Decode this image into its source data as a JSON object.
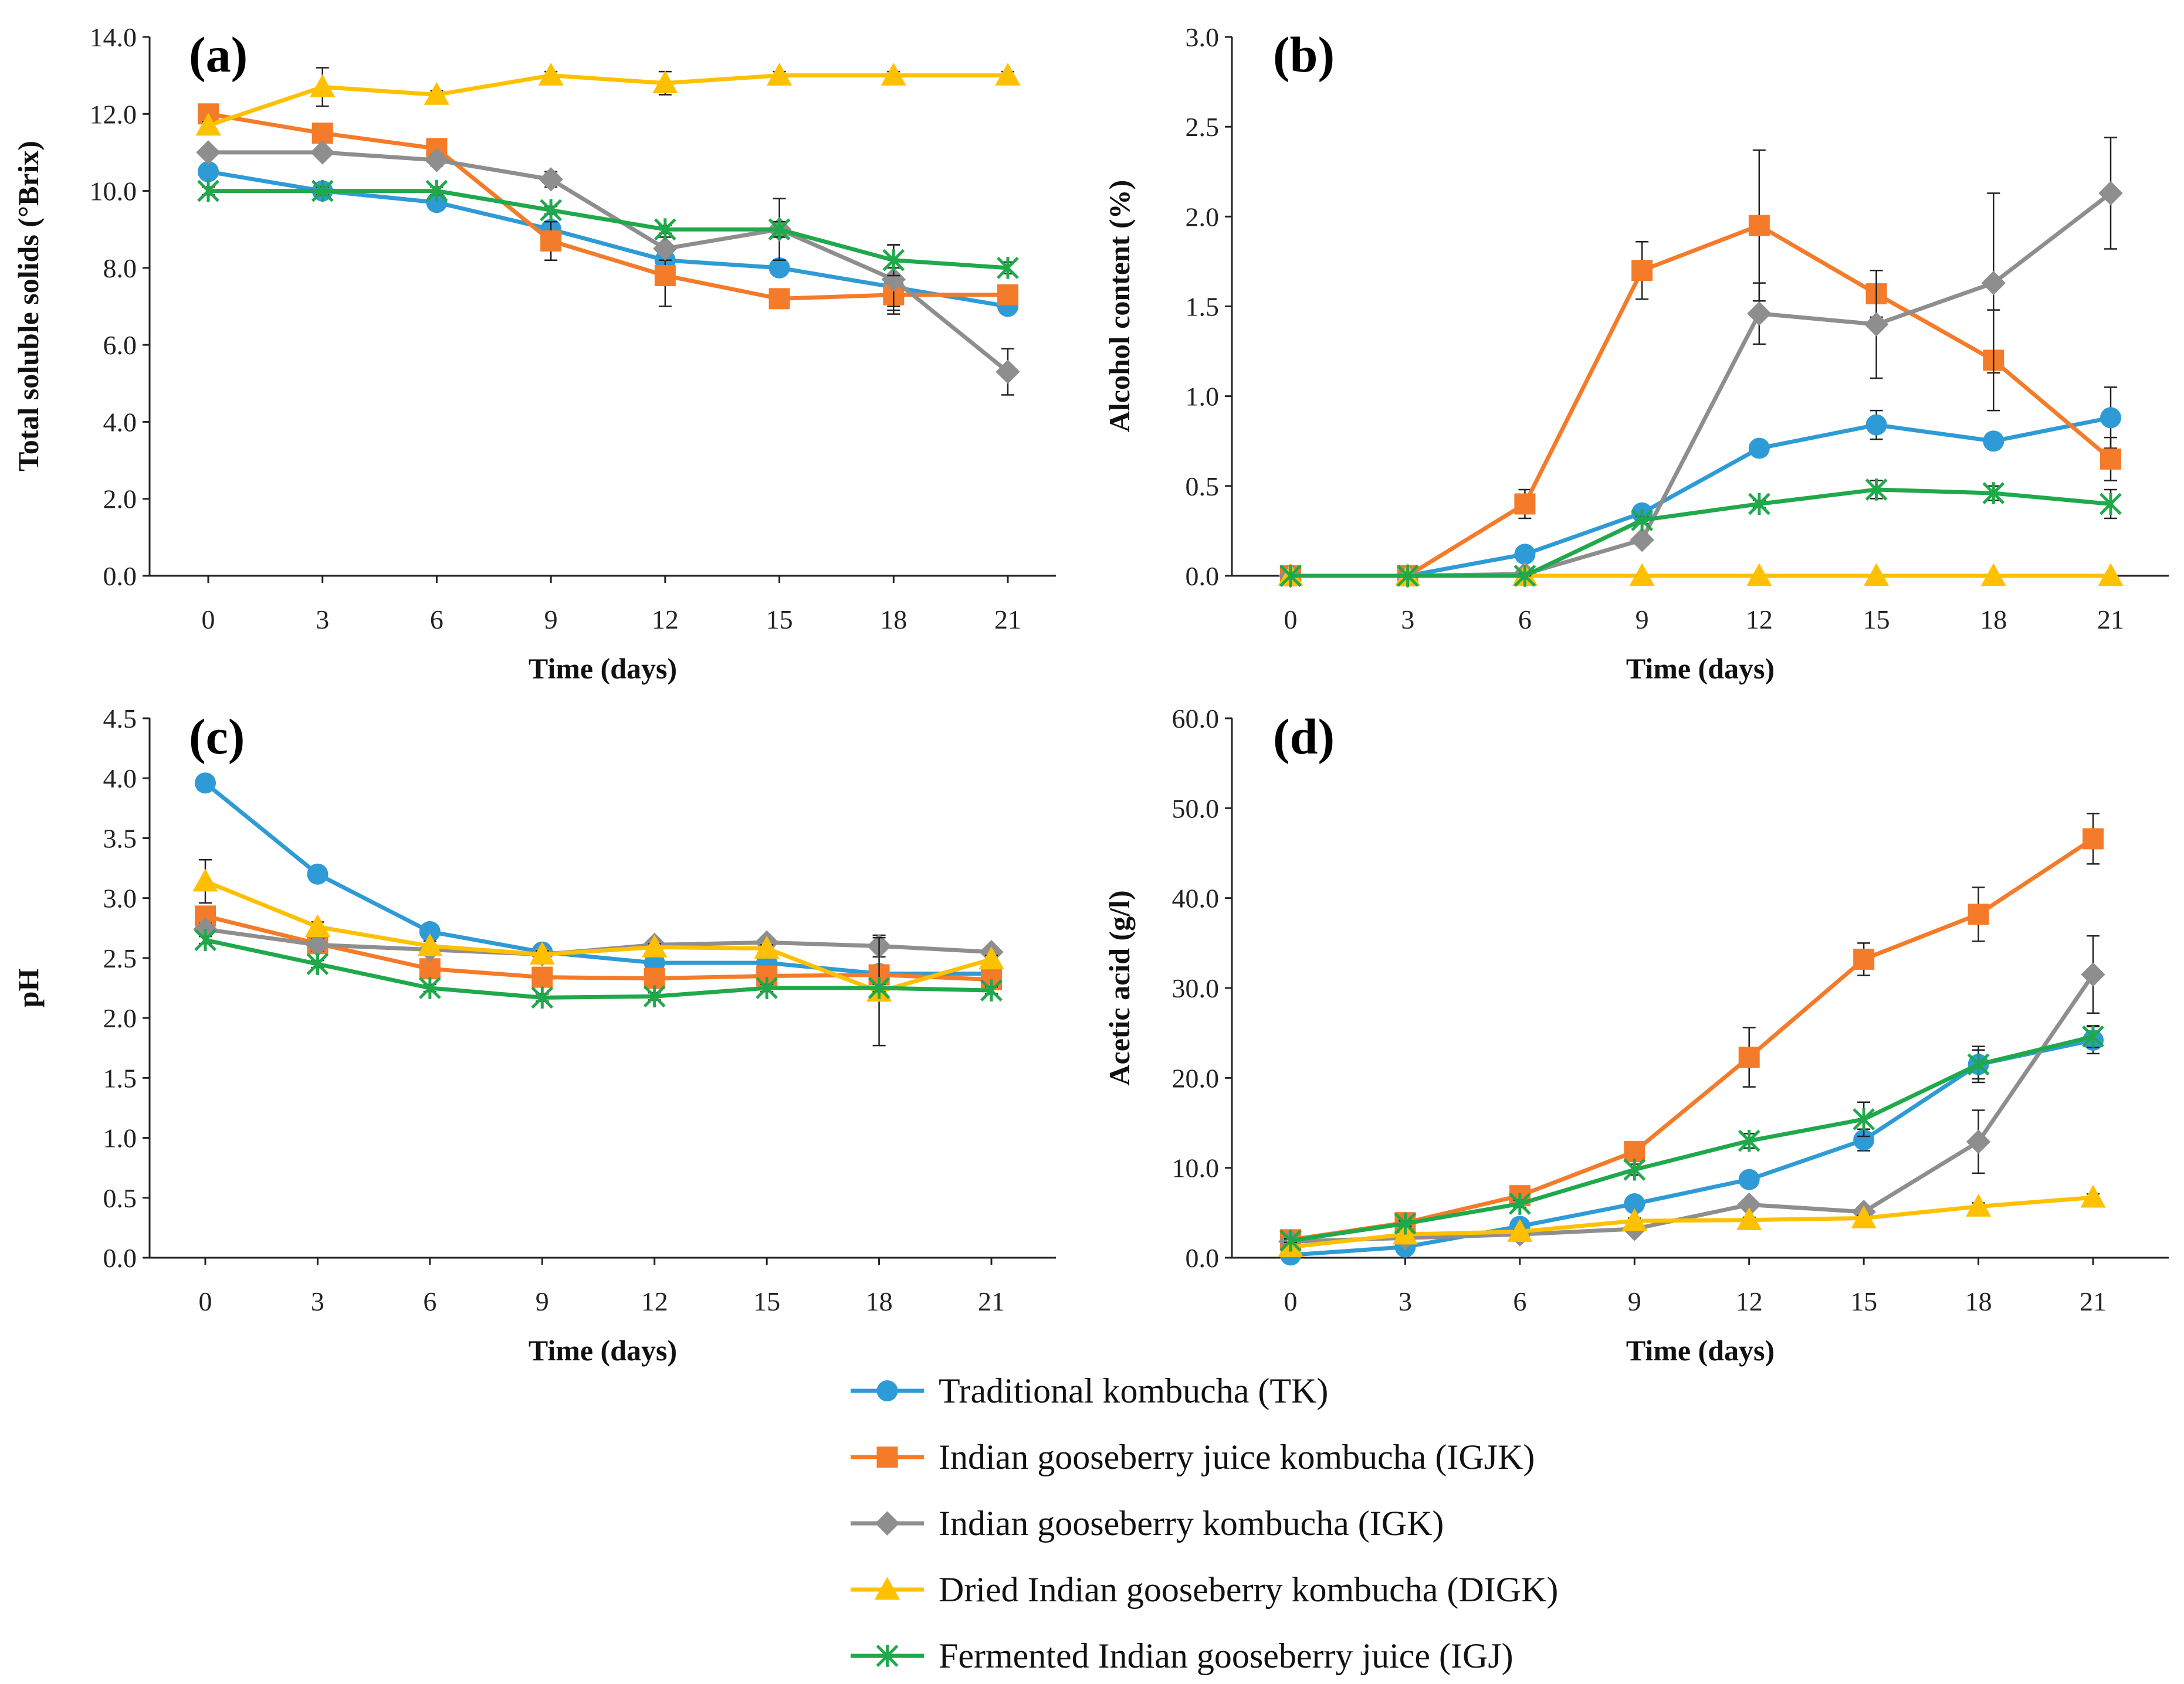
{
  "legend": [
    {
      "key": "TK",
      "label": "Traditional kombucha (TK)",
      "color": "#2E9BD6",
      "marker": "circle"
    },
    {
      "key": "IGJK",
      "label": "Indian gooseberry juice kombucha (IGJK)",
      "color": "#F47B2A",
      "marker": "square"
    },
    {
      "key": "IGK",
      "label": "Indian gooseberry kombucha (IGK)",
      "color": "#8E8E8E",
      "marker": "diamond"
    },
    {
      "key": "DIGK",
      "label": "Dried Indian gooseberry kombucha (DIGK)",
      "color": "#FFC000",
      "marker": "triangle"
    },
    {
      "key": "IGJ",
      "label": "Fermented Indian gooseberry juice  (IGJ)",
      "color": "#1FA94B",
      "marker": "star"
    }
  ],
  "chart_data": [
    {
      "id": "a",
      "panel_label": "(a)",
      "type": "line",
      "xlabel": "Time (days)",
      "ylabel": "Total soluble solids (°Brix)",
      "x": [
        0,
        3,
        6,
        9,
        12,
        15,
        18,
        21
      ],
      "ylim": [
        0,
        14
      ],
      "yticks": [
        "0.0",
        "2.0",
        "4.0",
        "6.0",
        "8.0",
        "10.0",
        "12.0",
        "14.0"
      ],
      "series": [
        {
          "key": "TK",
          "values": [
            10.5,
            10.0,
            9.7,
            9.0,
            8.2,
            8.0,
            7.5,
            7.0
          ],
          "errors": [
            0.15,
            0.1,
            0.1,
            0.2,
            0.15,
            0.15,
            0.5,
            0.2
          ]
        },
        {
          "key": "IGJK",
          "values": [
            12.0,
            11.5,
            11.1,
            8.7,
            7.8,
            7.2,
            7.3,
            7.3
          ],
          "errors": [
            0.2,
            0.15,
            0.2,
            0.5,
            0.8,
            0.15,
            0.4,
            0.2
          ]
        },
        {
          "key": "IGK",
          "values": [
            11.0,
            11.0,
            10.8,
            10.3,
            8.5,
            9.0,
            7.7,
            5.3
          ],
          "errors": [
            0.1,
            0.1,
            0.15,
            0.2,
            0.3,
            0.8,
            0.9,
            0.6
          ]
        },
        {
          "key": "DIGK",
          "values": [
            11.7,
            12.7,
            12.5,
            13.0,
            12.8,
            13.0,
            13.0,
            13.0
          ],
          "errors": [
            0.1,
            0.5,
            0.1,
            0.1,
            0.3,
            0.1,
            0.1,
            0.1
          ]
        },
        {
          "key": "IGJ",
          "values": [
            10.0,
            10.0,
            10.0,
            9.5,
            9.0,
            9.0,
            8.2,
            8.0
          ],
          "errors": [
            0.1,
            0.1,
            0.1,
            0.1,
            0.1,
            0.2,
            0.4,
            0.15
          ]
        }
      ]
    },
    {
      "id": "b",
      "panel_label": "(b)",
      "type": "line",
      "xlabel": "Time (days)",
      "ylabel": "Alcohol content (%)",
      "x": [
        0,
        3,
        6,
        9,
        12,
        15,
        18,
        21
      ],
      "ylim": [
        0,
        3
      ],
      "yticks": [
        "0.0",
        "0.5",
        "1.0",
        "1.5",
        "2.0",
        "2.5",
        "3.0"
      ],
      "series": [
        {
          "key": "TK",
          "values": [
            0,
            0,
            0.12,
            0.35,
            0.71,
            0.84,
            0.75,
            0.88
          ],
          "errors": [
            0,
            0,
            0.02,
            0.03,
            0.03,
            0.08,
            0.04,
            0.17
          ]
        },
        {
          "key": "IGJK",
          "values": [
            0,
            0,
            0.4,
            1.7,
            1.95,
            1.57,
            1.2,
            0.65
          ],
          "errors": [
            0,
            0,
            0.08,
            0.16,
            0.42,
            0.13,
            0.28,
            0.12
          ]
        },
        {
          "key": "IGK",
          "values": [
            0,
            0,
            0.01,
            0.2,
            1.46,
            1.4,
            1.63,
            2.13
          ],
          "errors": [
            0,
            0,
            0.02,
            0.03,
            0.17,
            0.3,
            0.5,
            0.31
          ]
        },
        {
          "key": "DIGK",
          "values": [
            0,
            0,
            0,
            0,
            0,
            0,
            0,
            0
          ],
          "errors": [
            0,
            0,
            0,
            0,
            0,
            0,
            0,
            0
          ]
        },
        {
          "key": "IGJ",
          "values": [
            0,
            0,
            0,
            0.31,
            0.4,
            0.48,
            0.46,
            0.4
          ],
          "errors": [
            0,
            0,
            0.01,
            0.02,
            0.02,
            0.05,
            0.04,
            0.08
          ]
        }
      ]
    },
    {
      "id": "c",
      "panel_label": "(c)",
      "type": "line",
      "xlabel": "Time (days)",
      "ylabel": "pH",
      "x": [
        0,
        3,
        6,
        9,
        12,
        15,
        18,
        21
      ],
      "ylim": [
        0,
        4.5
      ],
      "yticks": [
        "0.0",
        "0.5",
        "1.0",
        "1.5",
        "2.0",
        "2.5",
        "3.0",
        "3.5",
        "4.0",
        "4.5"
      ],
      "series": [
        {
          "key": "TK",
          "values": [
            3.96,
            3.2,
            2.72,
            2.55,
            2.46,
            2.46,
            2.37,
            2.37
          ],
          "errors": [
            0.03,
            0.03,
            0.03,
            0.03,
            0.03,
            0.03,
            0.03,
            0.03
          ]
        },
        {
          "key": "IGJK",
          "values": [
            2.85,
            2.62,
            2.41,
            2.34,
            2.33,
            2.35,
            2.36,
            2.32
          ],
          "errors": [
            0.05,
            0.05,
            0.04,
            0.03,
            0.03,
            0.03,
            0.03,
            0.03
          ]
        },
        {
          "key": "IGK",
          "values": [
            2.74,
            2.61,
            2.57,
            2.53,
            2.61,
            2.63,
            2.6,
            2.55
          ],
          "errors": [
            0.05,
            0.05,
            0.04,
            0.03,
            0.03,
            0.03,
            0.09,
            0.03
          ]
        },
        {
          "key": "DIGK",
          "values": [
            3.14,
            2.76,
            2.6,
            2.53,
            2.59,
            2.58,
            2.22,
            2.49
          ],
          "errors": [
            0.18,
            0.04,
            0.04,
            0.03,
            0.03,
            0.03,
            0.45,
            0.03
          ]
        },
        {
          "key": "IGJ",
          "values": [
            2.65,
            2.45,
            2.25,
            2.17,
            2.18,
            2.25,
            2.25,
            2.23
          ],
          "errors": [
            0.03,
            0.03,
            0.03,
            0.03,
            0.03,
            0.03,
            0.03,
            0.03
          ]
        }
      ]
    },
    {
      "id": "d",
      "panel_label": "(d)",
      "type": "line",
      "xlabel": "Time (days)",
      "ylabel": "Acetic acid (g/l)",
      "x": [
        0,
        3,
        6,
        9,
        12,
        15,
        18,
        21
      ],
      "ylim": [
        0,
        60
      ],
      "yticks": [
        "0.0",
        "10.0",
        "20.0",
        "30.0",
        "40.0",
        "50.0",
        "60.0"
      ],
      "series": [
        {
          "key": "TK",
          "values": [
            0.3,
            1.2,
            3.5,
            6.0,
            8.7,
            13.1,
            21.5,
            24.2
          ],
          "errors": [
            0.1,
            0.2,
            0.3,
            0.4,
            0.6,
            1.2,
            2.0,
            1.5
          ]
        },
        {
          "key": "IGJK",
          "values": [
            2.0,
            3.9,
            6.9,
            11.8,
            22.3,
            33.2,
            38.2,
            46.6
          ],
          "errors": [
            0.2,
            0.4,
            0.5,
            0.8,
            3.3,
            1.8,
            3.0,
            2.8
          ]
        },
        {
          "key": "IGK",
          "values": [
            1.8,
            2.2,
            2.6,
            3.2,
            5.9,
            5.1,
            12.9,
            31.5
          ],
          "errors": [
            0.2,
            0.2,
            0.3,
            0.4,
            0.5,
            0.5,
            3.5,
            4.3
          ]
        },
        {
          "key": "DIGK",
          "values": [
            1.2,
            2.6,
            2.9,
            4.1,
            4.2,
            4.4,
            5.7,
            6.7
          ],
          "errors": [
            0.1,
            0.2,
            0.2,
            0.3,
            0.3,
            0.3,
            0.4,
            0.4
          ]
        },
        {
          "key": "IGJ",
          "values": [
            1.9,
            3.8,
            6.0,
            9.8,
            13.0,
            15.4,
            21.5,
            24.6
          ],
          "errors": [
            0.2,
            0.3,
            0.4,
            0.6,
            0.8,
            1.9,
            1.6,
            1.2
          ]
        }
      ]
    }
  ]
}
